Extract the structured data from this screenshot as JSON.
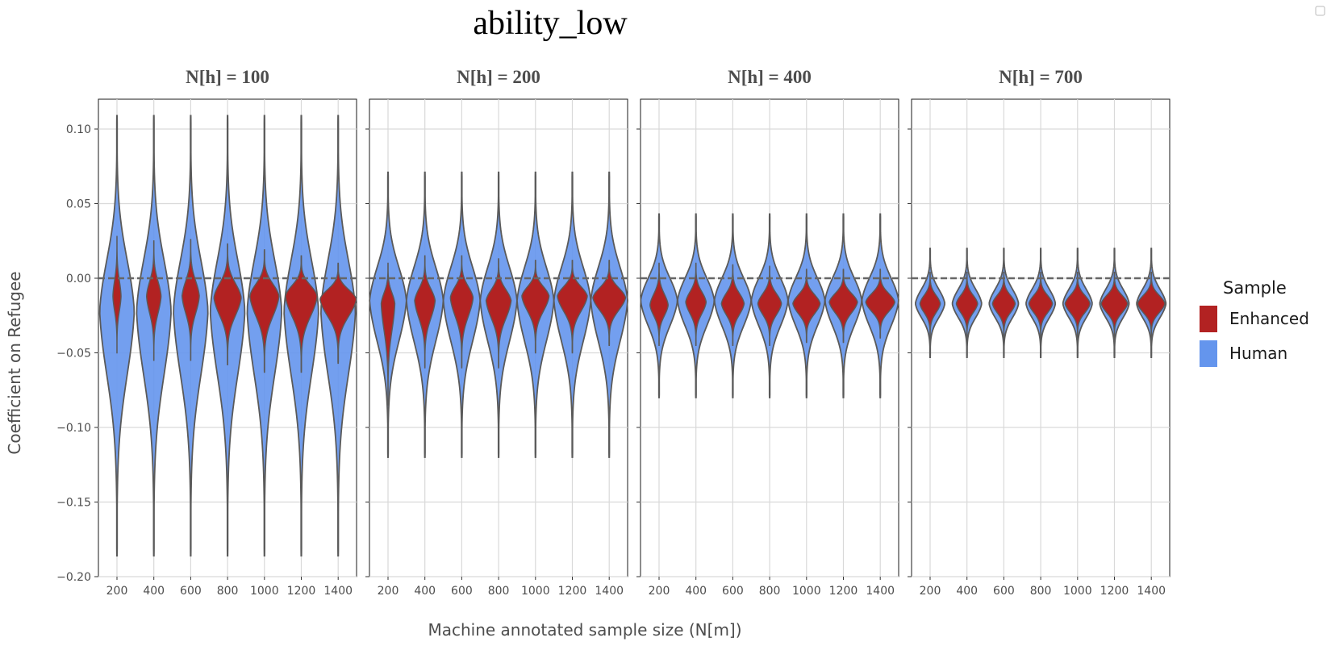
{
  "chart_data": {
    "type": "violin",
    "title": "ability_low",
    "xlabel": "Machine annotated sample size (N[m])",
    "ylabel": "Coefficient on Refugee",
    "ylim": [
      -0.2,
      0.12
    ],
    "yticks": [
      0.1,
      0.05,
      0.0,
      -0.05,
      -0.1,
      -0.15,
      -0.2
    ],
    "ytick_labels": [
      "0.10",
      "0.05",
      "0.00",
      "−0.05",
      "−0.10",
      "−0.15",
      "−0.20"
    ],
    "categories": [
      "200",
      "400",
      "600",
      "800",
      "1000",
      "1200",
      "1400"
    ],
    "reference_line": 0.0,
    "grid": true,
    "legend": {
      "title": "Sample",
      "position": "right",
      "entries": [
        {
          "name": "Enhanced",
          "color": "#b22222"
        },
        {
          "name": "Human",
          "color": "#6495ed"
        }
      ]
    },
    "colors": {
      "Enhanced": "#b22222",
      "Human": "#6495ed"
    },
    "facets": [
      {
        "label": "N[h] = 100",
        "human": {
          "min": -0.186,
          "max": 0.109,
          "center": -0.022,
          "halfwidth": 0.47
        },
        "enhanced": {
          "center": [
            -0.012,
            -0.012,
            -0.012,
            -0.013,
            -0.012,
            -0.012,
            -0.014
          ],
          "min": [
            -0.05,
            -0.055,
            -0.055,
            -0.058,
            -0.063,
            -0.063,
            -0.057
          ],
          "max": [
            0.028,
            0.025,
            0.026,
            0.023,
            0.019,
            0.015,
            0.01
          ],
          "halfwidth": [
            0.18,
            0.32,
            0.38,
            0.6,
            0.64,
            0.7,
            0.8
          ]
        }
      },
      {
        "label": "N[h] = 200",
        "human": {
          "min": -0.12,
          "max": 0.071,
          "center": -0.015,
          "halfwidth": 0.5
        },
        "enhanced": {
          "center": [
            -0.017,
            -0.015,
            -0.013,
            -0.015,
            -0.012,
            -0.012,
            -0.013
          ],
          "min": [
            -0.085,
            -0.06,
            -0.06,
            -0.06,
            -0.05,
            -0.05,
            -0.045
          ],
          "max": [
            0.01,
            0.015,
            0.015,
            0.013,
            0.012,
            0.012,
            0.012
          ],
          "halfwidth": [
            0.3,
            0.45,
            0.5,
            0.55,
            0.6,
            0.66,
            0.72
          ]
        }
      },
      {
        "label": "N[h] = 400",
        "human": {
          "min": -0.08,
          "max": 0.043,
          "center": -0.015,
          "halfwidth": 0.5
        },
        "enhanced": {
          "center": [
            -0.018,
            -0.016,
            -0.017,
            -0.017,
            -0.017,
            -0.016,
            -0.016
          ],
          "min": [
            -0.045,
            -0.045,
            -0.045,
            -0.045,
            -0.043,
            -0.043,
            -0.04
          ],
          "max": [
            0.01,
            0.01,
            0.009,
            0.008,
            0.006,
            0.006,
            0.006
          ],
          "halfwidth": [
            0.4,
            0.45,
            0.5,
            0.52,
            0.6,
            0.62,
            0.64
          ]
        }
      },
      {
        "label": "N[h] = 700",
        "human": {
          "min": -0.053,
          "max": 0.02,
          "center": -0.017,
          "halfwidth": 0.4
        },
        "enhanced": {
          "center": [
            -0.017,
            -0.017,
            -0.017,
            -0.017,
            -0.017,
            -0.017,
            -0.017
          ],
          "min": [
            -0.04,
            -0.04,
            -0.04,
            -0.04,
            -0.04,
            -0.04,
            -0.04
          ],
          "max": [
            0.004,
            0.004,
            0.004,
            0.004,
            0.004,
            0.004,
            0.004
          ],
          "halfwidth": [
            0.45,
            0.47,
            0.5,
            0.52,
            0.55,
            0.58,
            0.6
          ]
        }
      }
    ]
  }
}
